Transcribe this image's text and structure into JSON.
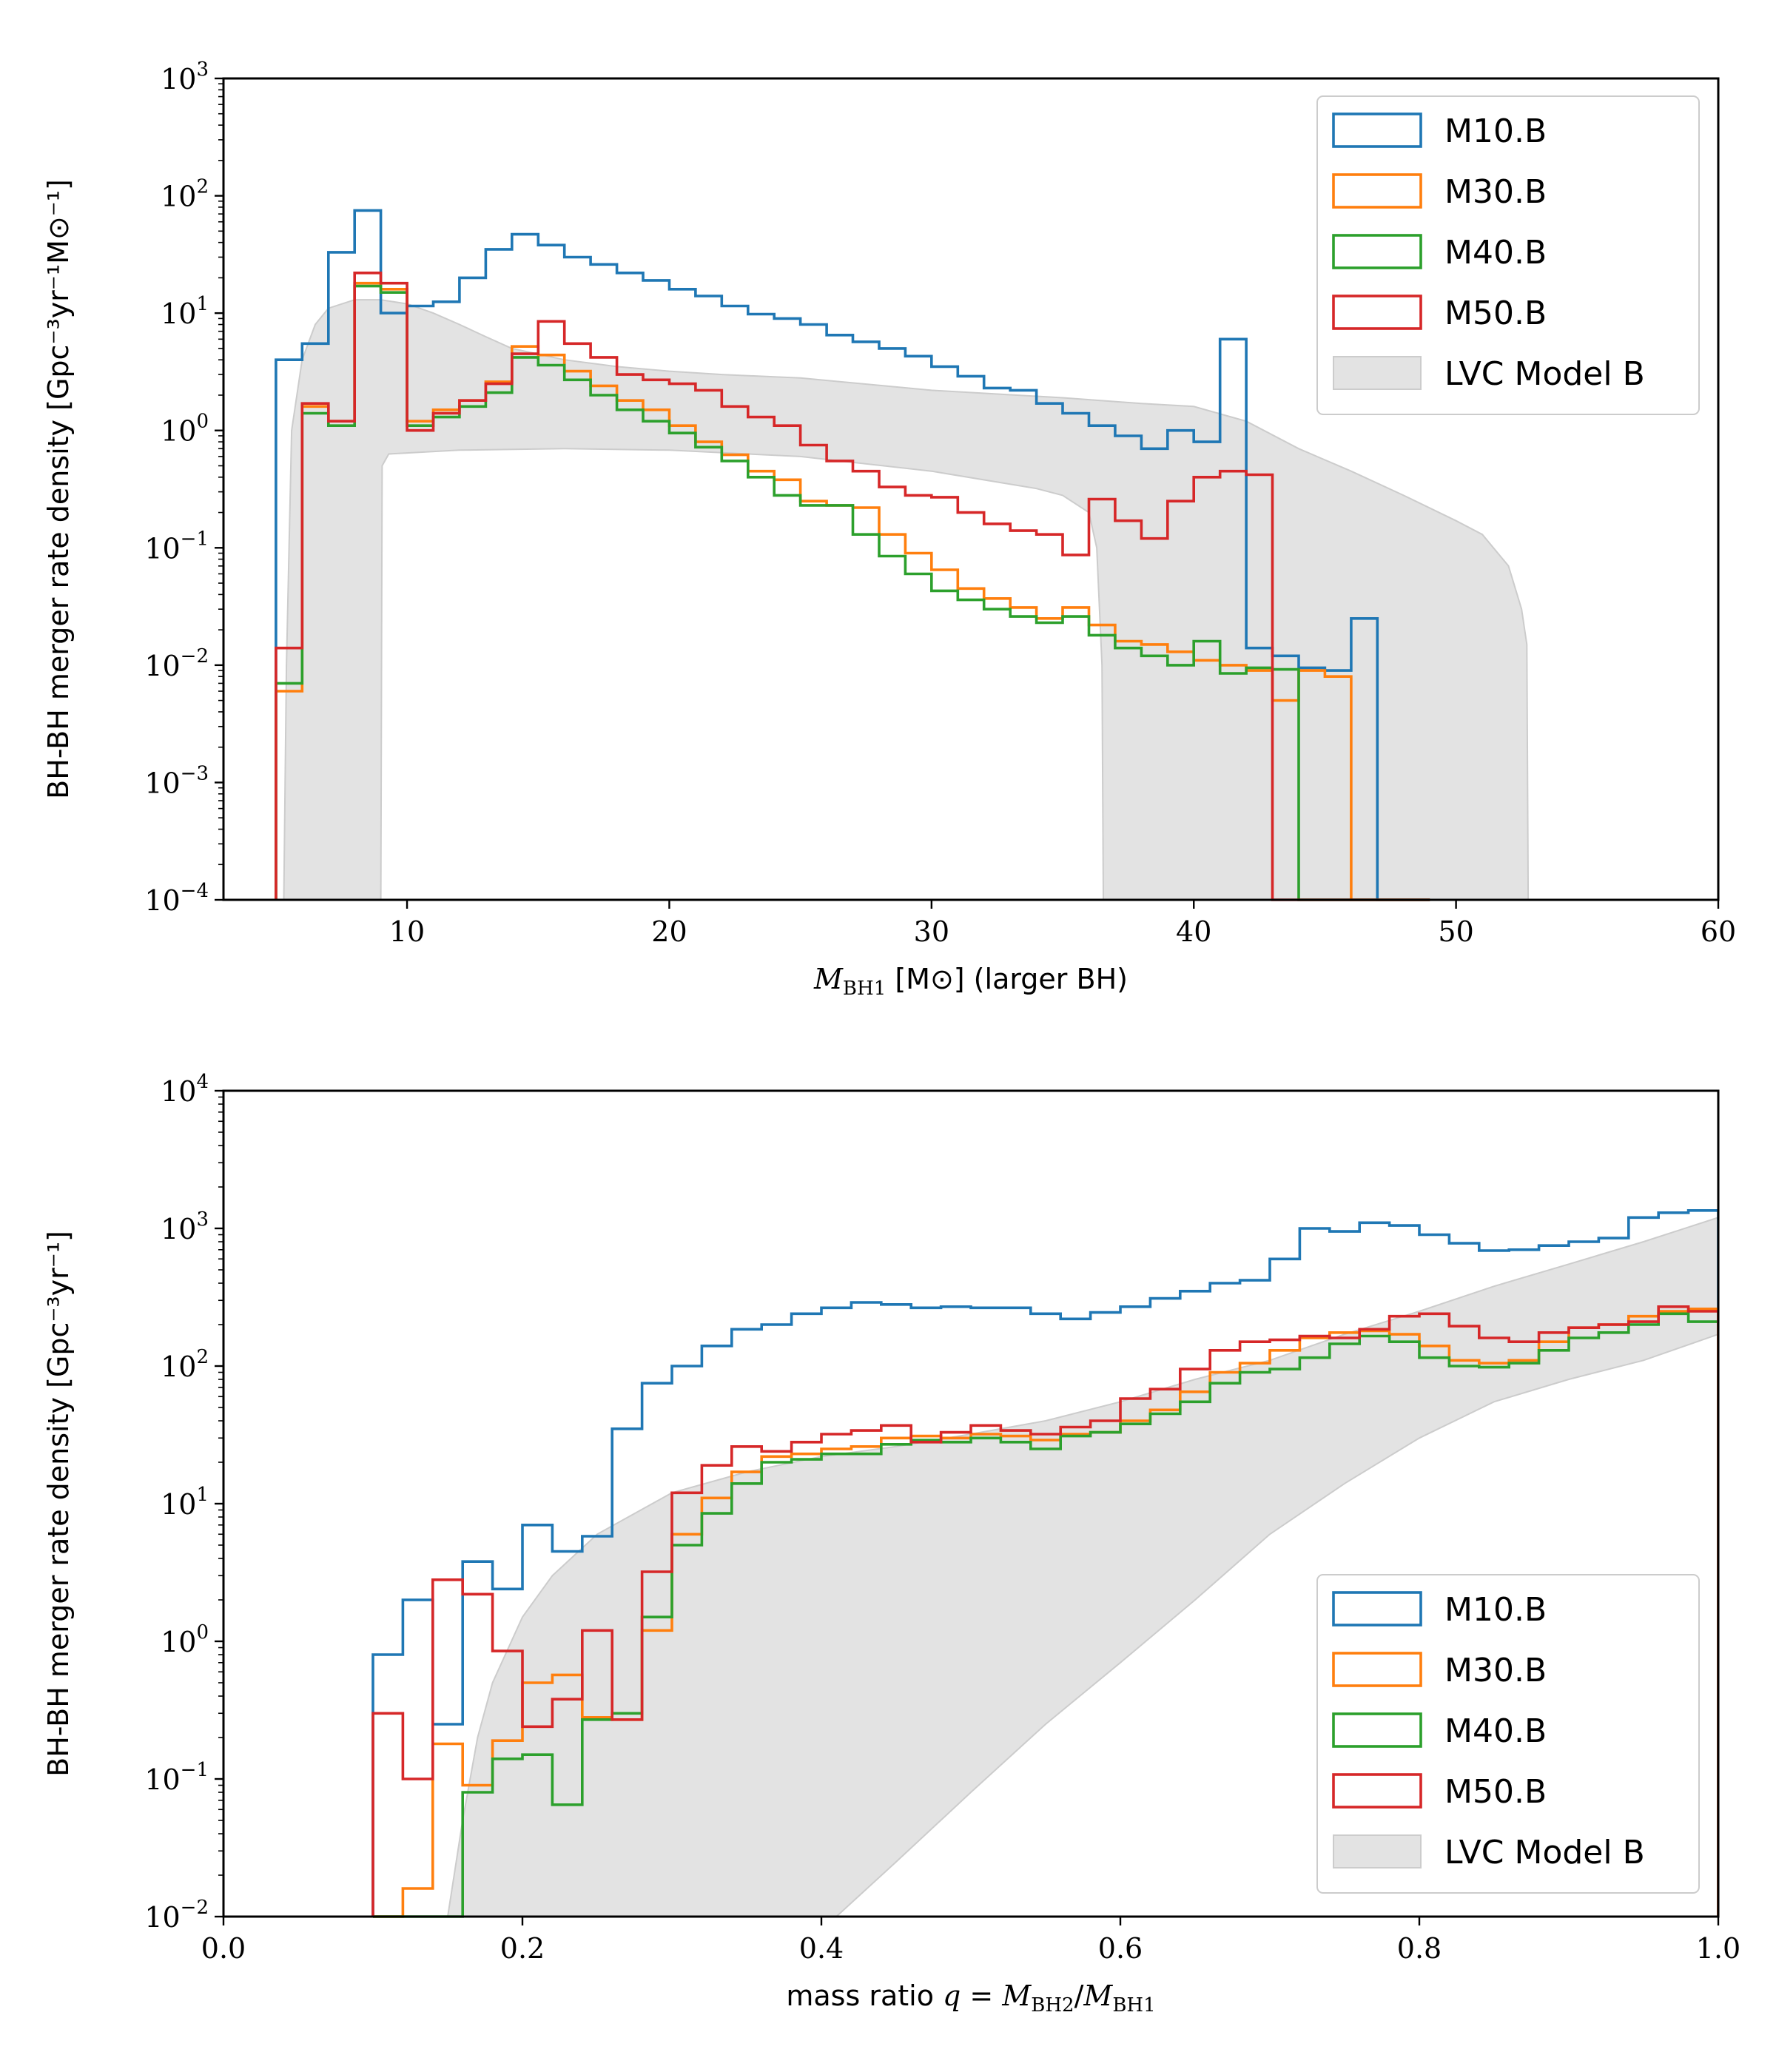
{
  "chart_data": [
    {
      "type": "histogram-step",
      "title": "",
      "xlabel": {
        "math": "M",
        "sub": "BH1",
        "text": " [M⊙] (larger BH)"
      },
      "ylabel": "BH-BH merger rate density [Gpc⁻³yr⁻¹M⊙⁻¹]",
      "xlim": [
        3,
        60
      ],
      "ylim_log10": [
        -4,
        3
      ],
      "yscale": "log",
      "xticks": [
        10,
        20,
        30,
        40,
        50,
        60
      ],
      "xtick_labels": [
        "10",
        "20",
        "30",
        "40",
        "50",
        "60"
      ],
      "yticks": [
        {
          "base": "10",
          "exp": "−4",
          "value_log10": -4
        },
        {
          "base": "10",
          "exp": "−3",
          "value_log10": -3
        },
        {
          "base": "10",
          "exp": "−2",
          "value_log10": -2
        },
        {
          "base": "10",
          "exp": "−1",
          "value_log10": -1
        },
        {
          "base": "10",
          "exp": "0",
          "value_log10": 0
        },
        {
          "base": "10",
          "exp": "1",
          "value_log10": 1
        },
        {
          "base": "10",
          "exp": "2",
          "value_log10": 2
        },
        {
          "base": "10",
          "exp": "3",
          "value_log10": 3
        }
      ],
      "legend_position": "top-right",
      "legend": [
        "M10.B",
        "M30.B",
        "M40.B",
        "M50.B",
        "LVC Model B"
      ],
      "band": {
        "name": "LVC Model B",
        "color": "#e3e3e3",
        "edge": "#cccccc",
        "upper": [
          [
            5.3,
            0.0001
          ],
          [
            5.4,
            0.01
          ],
          [
            5.6,
            1
          ],
          [
            6,
            4
          ],
          [
            6.5,
            8
          ],
          [
            7,
            11
          ],
          [
            8,
            13
          ],
          [
            9,
            13
          ],
          [
            10,
            12
          ],
          [
            11,
            10
          ],
          [
            12,
            8
          ],
          [
            13,
            6.3
          ],
          [
            14,
            5
          ],
          [
            16,
            4
          ],
          [
            18,
            3.5
          ],
          [
            20,
            3.2
          ],
          [
            22,
            3
          ],
          [
            25,
            2.8
          ],
          [
            30,
            2.2
          ],
          [
            35,
            1.9
          ],
          [
            38,
            1.7
          ],
          [
            40,
            1.6
          ],
          [
            42,
            1.2
          ],
          [
            44,
            0.7
          ],
          [
            46,
            0.45
          ],
          [
            48,
            0.28
          ],
          [
            50,
            0.17
          ],
          [
            51,
            0.13
          ],
          [
            52,
            0.07
          ],
          [
            52.5,
            0.03
          ],
          [
            52.7,
            0.015
          ],
          [
            52.75,
            0.0001
          ]
        ],
        "lower": [
          [
            5.3,
            0.0001
          ],
          [
            5.8,
            0.0001
          ],
          [
            9,
            0.0001
          ],
          [
            9.05,
            0.5
          ],
          [
            9.3,
            0.63
          ],
          [
            12,
            0.68
          ],
          [
            16,
            0.7
          ],
          [
            20,
            0.68
          ],
          [
            25,
            0.6
          ],
          [
            30,
            0.45
          ],
          [
            34,
            0.32
          ],
          [
            35,
            0.28
          ],
          [
            36,
            0.2
          ],
          [
            36.3,
            0.1
          ],
          [
            36.5,
            0.01
          ],
          [
            36.55,
            0.0001
          ],
          [
            52.75,
            0.0001
          ]
        ]
      },
      "bin_edges": [
        5,
        6,
        7,
        8,
        9,
        10,
        11,
        12,
        13,
        14,
        15,
        16,
        17,
        18,
        19,
        20,
        21,
        22,
        23,
        24,
        25,
        26,
        27,
        28,
        29,
        30,
        31,
        32,
        33,
        34,
        35,
        36,
        37,
        38,
        39,
        40,
        41,
        42,
        43,
        44,
        45,
        46,
        47,
        48,
        49
      ],
      "series": [
        {
          "name": "M10.B",
          "color": "#1f77b4",
          "values": [
            4,
            5.5,
            33,
            75,
            10,
            11.5,
            12.5,
            20,
            35,
            47,
            38,
            30,
            26,
            22,
            19,
            16,
            14,
            11.5,
            9.8,
            9,
            8,
            6.5,
            5.7,
            5,
            4.3,
            3.5,
            2.9,
            2.3,
            2.2,
            1.7,
            1.4,
            1.1,
            0.9,
            0.7,
            1.0,
            0.8,
            6,
            0.014,
            0.012,
            0.0095,
            0.009,
            0.025,
            0.0001,
            0.0001
          ]
        },
        {
          "name": "M30.B",
          "color": "#ff7f0e",
          "values": [
            0.006,
            1.6,
            1.2,
            18,
            16,
            1.2,
            1.5,
            1.8,
            2.6,
            5.2,
            4.4,
            3.2,
            2.4,
            1.8,
            1.5,
            1.1,
            0.8,
            0.62,
            0.45,
            0.38,
            0.25,
            0.23,
            0.22,
            0.13,
            0.09,
            0.065,
            0.045,
            0.037,
            0.031,
            0.025,
            0.031,
            0.022,
            0.016,
            0.015,
            0.013,
            0.011,
            0.01,
            0.009,
            0.005,
            0.009,
            0.008,
            0.0001,
            0.0001,
            0.0001
          ]
        },
        {
          "name": "M40.B",
          "color": "#2ca02c",
          "values": [
            0.007,
            1.4,
            1.1,
            17,
            15,
            1.1,
            1.3,
            1.6,
            2.1,
            4.2,
            3.6,
            2.7,
            2.0,
            1.5,
            1.2,
            0.95,
            0.72,
            0.55,
            0.4,
            0.28,
            0.23,
            0.23,
            0.13,
            0.085,
            0.06,
            0.043,
            0.036,
            0.03,
            0.026,
            0.023,
            0.026,
            0.018,
            0.014,
            0.012,
            0.01,
            0.016,
            0.0085,
            0.0095,
            0.0092,
            0.0001,
            0.0001,
            0.0001,
            0.0001,
            0.0001
          ]
        },
        {
          "name": "M50.B",
          "color": "#d62728",
          "values": [
            0.014,
            1.7,
            1.2,
            22,
            18,
            1.0,
            1.4,
            1.8,
            2.5,
            4.5,
            8.5,
            5.5,
            4.2,
            3.0,
            2.7,
            2.5,
            2.2,
            1.6,
            1.3,
            1.1,
            0.75,
            0.55,
            0.45,
            0.33,
            0.28,
            0.27,
            0.2,
            0.16,
            0.14,
            0.13,
            0.087,
            0.26,
            0.17,
            0.12,
            0.25,
            0.4,
            0.45,
            0.42,
            0.0001,
            0.0001,
            0.0001,
            0.0001,
            0.0001,
            0.0001
          ]
        }
      ],
      "series_fix": {
        "M10.B_right_edge": 47,
        "M30.B_right_edge": 49,
        "M40.B_right_edge": 49,
        "M50.B_right_edge": 49
      }
    },
    {
      "type": "histogram-step",
      "title": "",
      "xlabel": {
        "prefix": "mass ratio ",
        "math": "q",
        "eq": " = ",
        "m1": "M",
        "sub1": "BH2",
        "slash": "/",
        "m2": "M",
        "sub2": "BH1"
      },
      "ylabel": "BH-BH merger rate density [Gpc⁻³yr⁻¹]",
      "xlim": [
        0,
        1
      ],
      "ylim_log10": [
        -2,
        4
      ],
      "yscale": "log",
      "xticks": [
        0.0,
        0.2,
        0.4,
        0.6,
        0.8,
        1.0
      ],
      "xtick_labels": [
        "0.0",
        "0.2",
        "0.4",
        "0.6",
        "0.8",
        "1.0"
      ],
      "yticks": [
        {
          "base": "10",
          "exp": "−2",
          "value_log10": -2
        },
        {
          "base": "10",
          "exp": "−1",
          "value_log10": -1
        },
        {
          "base": "10",
          "exp": "0",
          "value_log10": 0
        },
        {
          "base": "10",
          "exp": "1",
          "value_log10": 1
        },
        {
          "base": "10",
          "exp": "2",
          "value_log10": 2
        },
        {
          "base": "10",
          "exp": "3",
          "value_log10": 3
        },
        {
          "base": "10",
          "exp": "4",
          "value_log10": 4
        }
      ],
      "legend_position": "bottom-right",
      "legend": [
        "M10.B",
        "M30.B",
        "M40.B",
        "M50.B",
        "LVC Model B"
      ],
      "band": {
        "name": "LVC Model B",
        "color": "#e3e3e3",
        "edge": "#cccccc",
        "upper": [
          [
            0.15,
            0.01
          ],
          [
            0.16,
            0.05
          ],
          [
            0.17,
            0.2
          ],
          [
            0.18,
            0.5
          ],
          [
            0.2,
            1.5
          ],
          [
            0.22,
            3
          ],
          [
            0.25,
            6
          ],
          [
            0.3,
            12
          ],
          [
            0.35,
            17
          ],
          [
            0.4,
            22
          ],
          [
            0.45,
            26
          ],
          [
            0.5,
            32
          ],
          [
            0.55,
            40
          ],
          [
            0.6,
            55
          ],
          [
            0.65,
            80
          ],
          [
            0.7,
            110
          ],
          [
            0.75,
            170
          ],
          [
            0.8,
            250
          ],
          [
            0.85,
            380
          ],
          [
            0.9,
            550
          ],
          [
            0.95,
            800
          ],
          [
            1.0,
            1200
          ]
        ],
        "lower": [
          [
            0.15,
            0.01
          ],
          [
            0.41,
            0.01
          ],
          [
            0.45,
            0.025
          ],
          [
            0.5,
            0.08
          ],
          [
            0.55,
            0.25
          ],
          [
            0.6,
            0.7
          ],
          [
            0.65,
            2
          ],
          [
            0.7,
            6
          ],
          [
            0.75,
            14
          ],
          [
            0.8,
            30
          ],
          [
            0.85,
            55
          ],
          [
            0.9,
            80
          ],
          [
            0.95,
            110
          ],
          [
            1.0,
            170
          ]
        ]
      },
      "bin_edges": [
        0.1,
        0.12,
        0.14,
        0.16,
        0.18,
        0.2,
        0.22,
        0.24,
        0.26,
        0.28,
        0.3,
        0.32,
        0.34,
        0.36,
        0.38,
        0.4,
        0.42,
        0.44,
        0.46,
        0.48,
        0.5,
        0.52,
        0.54,
        0.56,
        0.58,
        0.6,
        0.62,
        0.64,
        0.66,
        0.68,
        0.7,
        0.72,
        0.74,
        0.76,
        0.78,
        0.8,
        0.82,
        0.84,
        0.86,
        0.88,
        0.9,
        0.92,
        0.94,
        0.96,
        0.98,
        1.0
      ],
      "series": [
        {
          "name": "M10.B",
          "color": "#1f77b4",
          "values": [
            0.8,
            2.0,
            0.25,
            3.8,
            2.4,
            7.0,
            4.5,
            5.8,
            35,
            75,
            100,
            140,
            185,
            200,
            240,
            265,
            290,
            280,
            265,
            270,
            265,
            265,
            240,
            220,
            245,
            270,
            310,
            350,
            400,
            420,
            600,
            1000,
            950,
            1100,
            1050,
            900,
            780,
            690,
            700,
            750,
            800,
            850,
            1200,
            1300,
            1350
          ]
        },
        {
          "name": "M30.B",
          "color": "#ff7f0e",
          "values": [
            0.0001,
            0.016,
            0.18,
            0.09,
            0.19,
            0.5,
            0.57,
            0.28,
            0.27,
            1.2,
            6.0,
            11,
            17,
            22,
            23,
            25,
            26,
            30,
            31,
            30,
            32,
            31,
            29,
            32,
            33,
            40,
            48,
            65,
            90,
            105,
            130,
            160,
            175,
            180,
            170,
            140,
            110,
            105,
            110,
            150,
            190,
            200,
            230,
            250,
            260
          ]
        },
        {
          "name": "M40.B",
          "color": "#2ca02c",
          "values": [
            0.0001,
            0.0001,
            0.0001,
            0.08,
            0.14,
            0.15,
            0.065,
            0.27,
            0.3,
            1.5,
            5.0,
            8.5,
            14,
            20,
            21,
            23,
            23,
            27,
            29,
            28,
            30,
            28,
            25,
            31,
            33,
            38,
            45,
            55,
            75,
            90,
            95,
            115,
            145,
            165,
            150,
            115,
            100,
            98,
            105,
            130,
            160,
            175,
            200,
            240,
            210
          ]
        },
        {
          "name": "M50.B",
          "color": "#d62728",
          "values": [
            0.3,
            0.1,
            2.8,
            2.2,
            0.85,
            0.24,
            0.38,
            1.2,
            0.27,
            3.2,
            12,
            19,
            26,
            24,
            28,
            32,
            34,
            37,
            28,
            33,
            37,
            34,
            32,
            36,
            40,
            58,
            68,
            95,
            130,
            150,
            155,
            165,
            160,
            185,
            230,
            240,
            195,
            160,
            150,
            175,
            190,
            200,
            210,
            270,
            250
          ]
        }
      ]
    }
  ]
}
